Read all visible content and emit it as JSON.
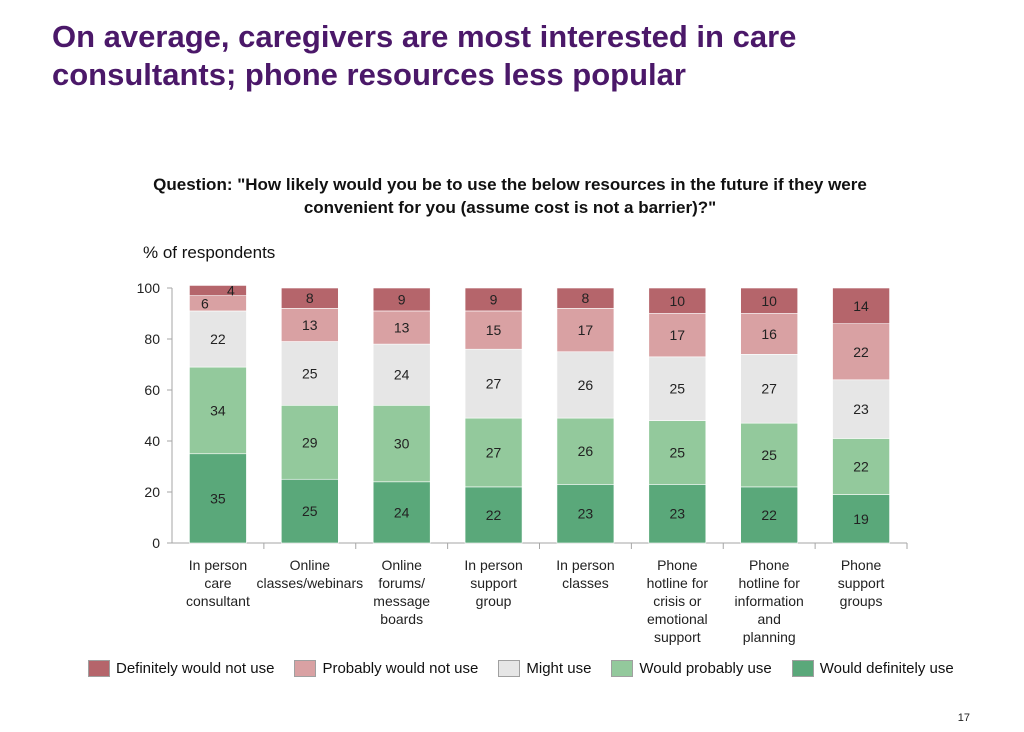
{
  "slide": {
    "title": "On average, caregivers are most interested in care consultants; phone resources less popular",
    "page_number": "17"
  },
  "chart_data": {
    "type": "bar",
    "stacked": true,
    "title": "Question: \"How likely would you be to use the below resources in the future if they were convenient for you (assume cost is not a barrier)?\"",
    "ylabel": "% of respondents",
    "xlabel": "",
    "ylim": [
      0,
      100
    ],
    "yticks": [
      0,
      20,
      40,
      60,
      80,
      100
    ],
    "categories": [
      "In person care consultant",
      "Online classes/webinars",
      "Online forums/ message boards",
      "In person support group",
      "In person classes",
      "Phone hotline for crisis or emotional support",
      "Phone hotline for information and planning",
      "Phone support groups"
    ],
    "series": [
      {
        "name": "Would definitely use",
        "color": "#5aa87a",
        "values": [
          35,
          25,
          24,
          22,
          23,
          23,
          22,
          19
        ]
      },
      {
        "name": "Would probably use",
        "color": "#93c99c",
        "values": [
          34,
          29,
          30,
          27,
          26,
          25,
          25,
          22
        ]
      },
      {
        "name": "Might use",
        "color": "#e6e6e6",
        "values": [
          22,
          25,
          24,
          27,
          26,
          25,
          27,
          23
        ]
      },
      {
        "name": "Probably would not use",
        "color": "#d9a1a3",
        "values": [
          6,
          13,
          13,
          15,
          17,
          17,
          16,
          22
        ]
      },
      {
        "name": "Definitely would not use",
        "color": "#b5656b",
        "values": [
          4,
          8,
          9,
          9,
          8,
          10,
          10,
          14
        ]
      }
    ],
    "legend": [
      "Definitely would not use",
      "Probably would not use",
      "Might use",
      "Would probably use",
      "Would definitely use"
    ],
    "legend_position": "bottom"
  }
}
